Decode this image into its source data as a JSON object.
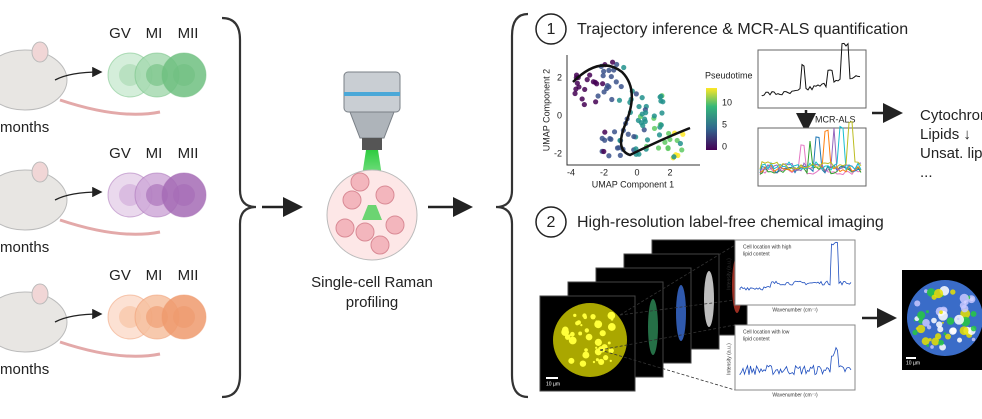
{
  "groups": [
    {
      "stages": [
        "GV",
        "MI",
        "MII"
      ],
      "label": "months"
    },
    {
      "stages": [
        "GV",
        "MI",
        "MII"
      ],
      "label": "months"
    },
    {
      "stages": [
        "GV",
        "MI",
        "MII"
      ],
      "label": "months"
    }
  ],
  "profiling": {
    "label": [
      "Single-cell Raman",
      "profiling"
    ]
  },
  "panels": [
    {
      "number": "1",
      "title": "Trajectory inference & MCR-ALS quantification",
      "umap": {
        "y_label": "UMAP Component 2",
        "x_label": "UMAP Component 1",
        "x_ticks": [
          "-4",
          "-2",
          "0",
          "2"
        ],
        "y_ticks": [
          "2",
          "0",
          "-2"
        ],
        "colorbar_title": "Pseudotime",
        "colorbar_ticks": [
          "10",
          "5",
          "0"
        ]
      },
      "method": "MCR-ALS",
      "outputs": [
        "Cytochrom",
        "Lipids ↓",
        "Unsat. lipi",
        "..."
      ]
    },
    {
      "number": "2",
      "title": "High-resolution label-free chemical imaging",
      "insets": [
        {
          "title": [
            "Cell location with high",
            "lipid content"
          ],
          "y_label": "Intensity (a.u.)",
          "x_label": "Wavenumber (cm⁻¹)"
        },
        {
          "title": [
            "Cell location with low",
            "lipid content"
          ],
          "y_label": "Intensity (a.u.)",
          "x_label": "Wavenumber (cm⁻¹)"
        }
      ],
      "scale_bar": "10 µm"
    }
  ]
}
